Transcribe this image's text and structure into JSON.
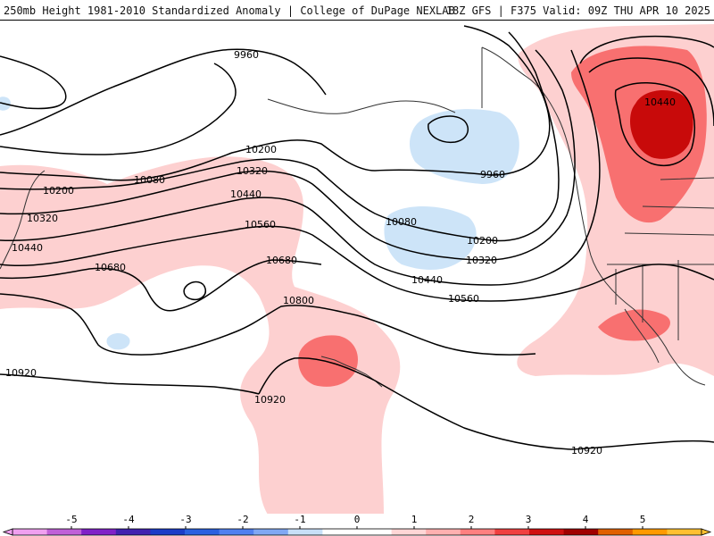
{
  "header": {
    "left": "250mb Height 1981-2010 Standardized Anomaly | College of DuPage NEXLAB",
    "right": "18Z GFS | F375 Valid: 09Z THU APR 10 2025"
  },
  "contour_labels": [
    "9960",
    "9960",
    "10080",
    "10080",
    "10200",
    "10200",
    "10200",
    "10320",
    "10320",
    "10320",
    "10440",
    "10440",
    "10440",
    "10440",
    "10560",
    "10560",
    "10680",
    "10680",
    "10800",
    "10920",
    "10920",
    "10920"
  ],
  "colorbar": {
    "ticks": [
      "-5",
      "-4",
      "-3",
      "-2",
      "-1",
      "0",
      "1",
      "2",
      "3",
      "4",
      "5"
    ],
    "colors": [
      "#e080e0",
      "#8a2be2",
      "#1a3cc8",
      "#4a70e8",
      "#c8e0f8",
      "#ffffff",
      "#ffc8c8",
      "#ff6a6a",
      "#c80000",
      "#ff8c00",
      "#ffd040"
    ]
  },
  "colors": {
    "anomaly_pos1": "#fdd0d0",
    "anomaly_pos2": "#f87070",
    "anomaly_pos3": "#c80a0a",
    "anomaly_neg1": "#cde4f8",
    "contour": "#000000",
    "coast": "#333333"
  }
}
